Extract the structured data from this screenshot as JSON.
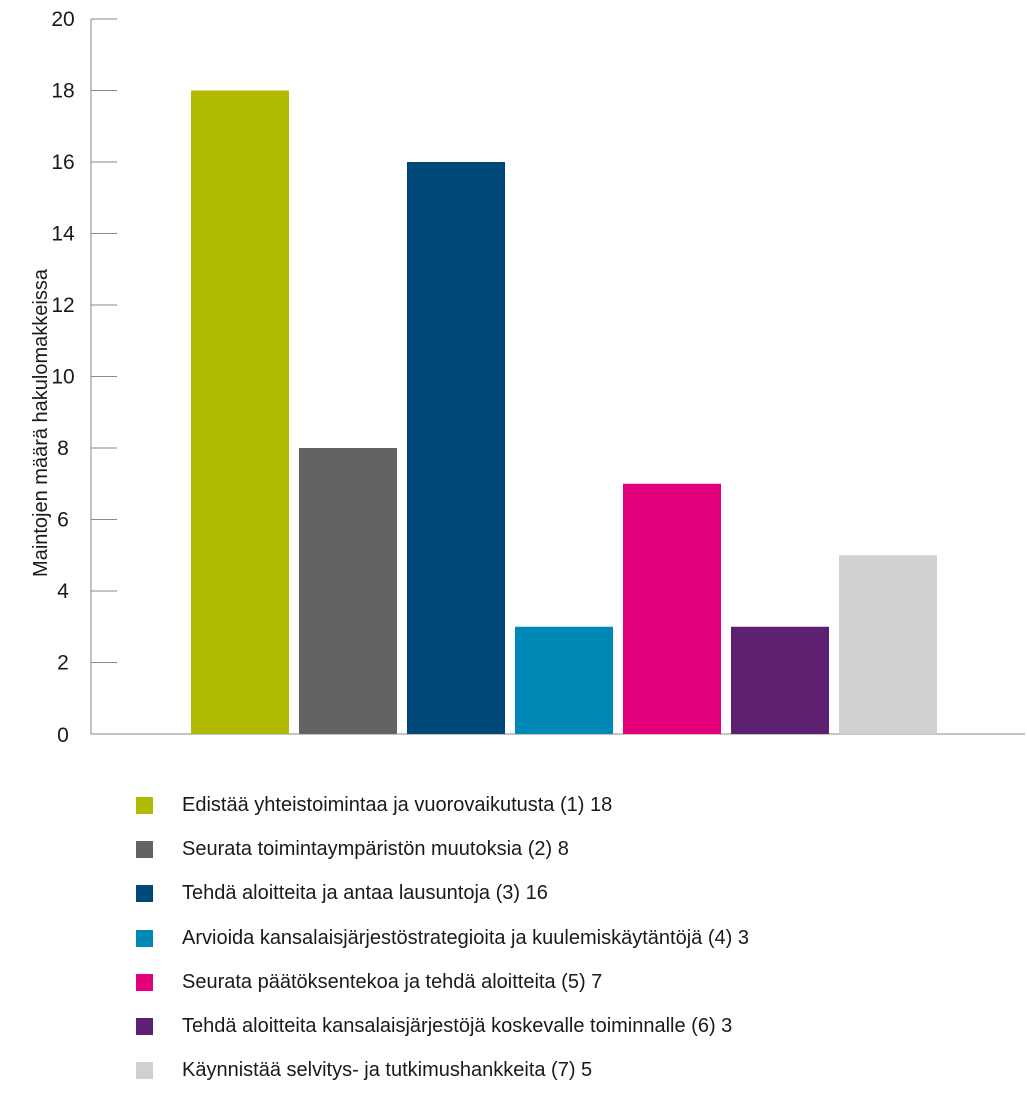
{
  "chart_data": {
    "type": "bar",
    "ylabel": "Maintojen määrä hakulomakkeissa",
    "ylim": [
      0,
      20
    ],
    "yticks": [
      0,
      2,
      4,
      6,
      8,
      10,
      12,
      14,
      16,
      18,
      20
    ],
    "grid": false,
    "legend_position": "bottom",
    "categories": [
      "(1)",
      "(2)",
      "(3)",
      "(4)",
      "(5)",
      "(6)",
      "(7)"
    ],
    "values": [
      18,
      8,
      16,
      3,
      7,
      3,
      5
    ],
    "colors": [
      "#b0ba00",
      "#636362",
      "#004877",
      "#0089b6",
      "#e4007d",
      "#5e2172",
      "#d0d0cf"
    ],
    "legend": [
      "Edistää yhteistoimintaa ja vuorovaikutusta (1) 18",
      "Seurata toimintaympäristön muutoksia (2) 8",
      "Tehdä aloitteita ja antaa lausuntoja (3) 16",
      "Arvioida kansalaisjärjestöstrategioita ja kuulemiskäytäntöjä (4) 3",
      "Seurata päätöksentekoa ja tehdä aloitteita (5) 7",
      "Tehdä aloitteita kansalaisjärjestöjä koskevalle toiminnalle (6) 3",
      "Käynnistää selvitys- ja tutkimushankkeita (7) 5"
    ]
  }
}
